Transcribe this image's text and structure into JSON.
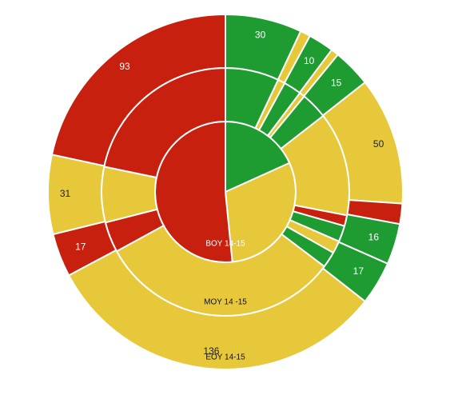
{
  "chart_data": {
    "type": "pie",
    "subtype": "nested-sunburst",
    "colors": {
      "red": "#c8200f",
      "green": "#1e9b31",
      "yellow": "#e6c83a",
      "divider": "#ffffff"
    },
    "rings": [
      {
        "name": "BOY 14-15",
        "label": "BOY 14-15",
        "segments": [
          {
            "id": "r1",
            "color": "green",
            "value": 52
          },
          {
            "id": "r2",
            "color": "yellow",
            "value": 86
          },
          {
            "id": "r3",
            "color": "red",
            "value": 147
          }
        ]
      },
      {
        "name": "MOY 14 -15",
        "label": "MOY 14 -15",
        "segments": [
          {
            "id": "m1",
            "color": "green",
            "value": 30
          },
          {
            "id": "m2",
            "color": "yellow",
            "value": 4
          },
          {
            "id": "m3",
            "color": "green",
            "value": 10
          },
          {
            "id": "m4",
            "color": "yellow",
            "value": 3
          },
          {
            "id": "m5",
            "color": "green",
            "value": 15
          },
          {
            "id": "m6",
            "color": "yellow",
            "value": 58
          },
          {
            "id": "m7",
            "color": "red",
            "value": 6
          },
          {
            "id": "m8",
            "color": "green",
            "value": 9
          },
          {
            "id": "m9",
            "color": "yellow",
            "value": 7
          },
          {
            "id": "m10",
            "color": "green",
            "value": 9
          },
          {
            "id": "m11",
            "color": "yellow",
            "value": 136
          },
          {
            "id": "m12",
            "color": "red",
            "value": 17
          },
          {
            "id": "m13",
            "color": "yellow",
            "value": 31
          },
          {
            "id": "m14",
            "color": "red",
            "value": 93
          }
        ]
      },
      {
        "name": "EOY 14-15",
        "label": "EOY 14-15",
        "segments": [
          {
            "id": "e1",
            "color": "green",
            "value": 30,
            "label": "30"
          },
          {
            "id": "e2",
            "color": "yellow",
            "value": 4
          },
          {
            "id": "e3",
            "color": "green",
            "value": 10,
            "label": "10"
          },
          {
            "id": "e4",
            "color": "yellow",
            "value": 3
          },
          {
            "id": "e5",
            "color": "green",
            "value": 15,
            "label": "15"
          },
          {
            "id": "e6",
            "color": "yellow",
            "value": 50,
            "label": "50"
          },
          {
            "id": "e7",
            "color": "red",
            "value": 8
          },
          {
            "id": "e8",
            "color": "green",
            "value": 16,
            "label": "16"
          },
          {
            "id": "e9",
            "color": "green",
            "value": 17,
            "label": "17"
          },
          {
            "id": "e10",
            "color": "yellow",
            "value": 136,
            "label": "136"
          },
          {
            "id": "e11",
            "color": "red",
            "value": 17,
            "label": "17"
          },
          {
            "id": "e12",
            "color": "yellow",
            "value": 31,
            "label": "31"
          },
          {
            "id": "e13",
            "color": "red",
            "value": 93,
            "label": "93"
          }
        ]
      }
    ]
  }
}
